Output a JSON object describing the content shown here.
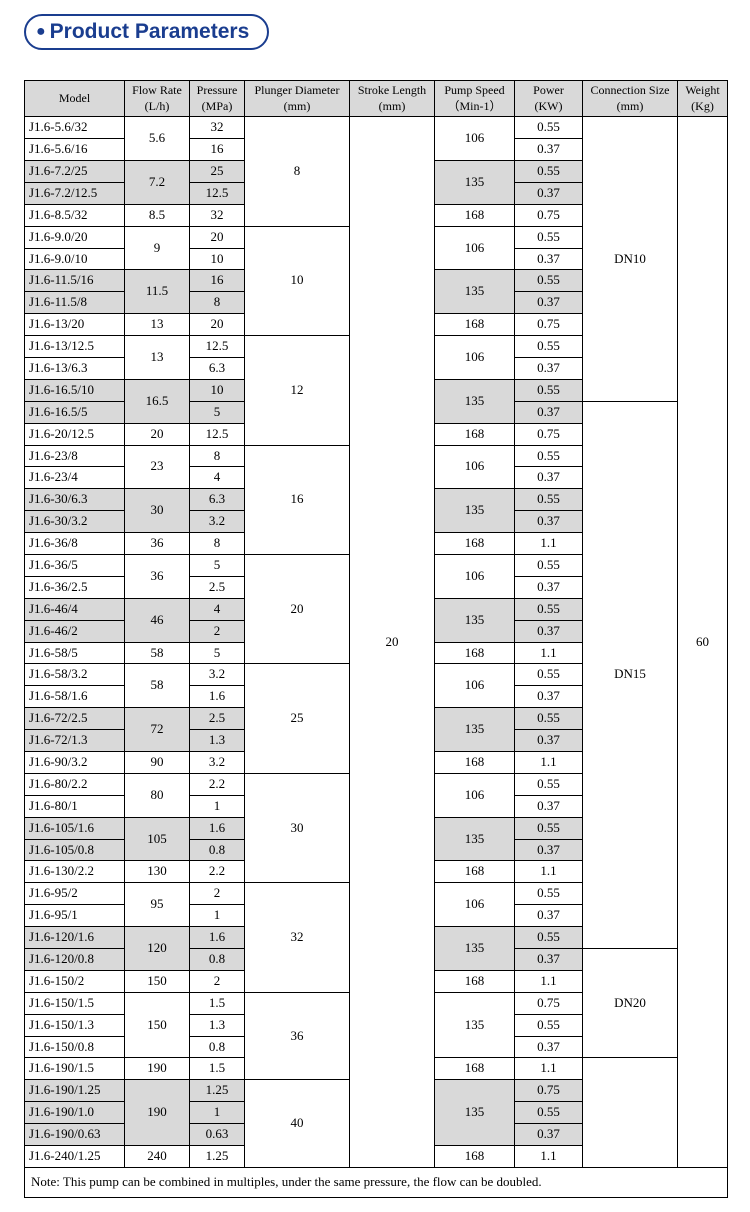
{
  "title": "Product Parameters",
  "headers": [
    {
      "l1": "Model",
      "l2": ""
    },
    {
      "l1": "Flow Rate",
      "l2": "(L/h)"
    },
    {
      "l1": "Pressure",
      "l2": "(MPa)"
    },
    {
      "l1": "Plunger Diameter",
      "l2": "(mm)"
    },
    {
      "l1": "Stroke Length",
      "l2": "(mm)"
    },
    {
      "l1": "Pump Speed",
      "l2": "（Min-1）"
    },
    {
      "l1": "Power",
      "l2": "(KW)"
    },
    {
      "l1": "Connection Size",
      "l2": "(mm)"
    },
    {
      "l1": "Weight",
      "l2": "(Kg)"
    }
  ],
  "stroke_length": "20",
  "weight": "60",
  "connections": [
    {
      "value": "DN10",
      "rows": 13
    },
    {
      "value": "DN15",
      "rows": 25
    },
    {
      "value": "DN20",
      "rows": 5
    }
  ],
  "groups": [
    {
      "plunger": "8",
      "shade": false,
      "rows": [
        {
          "m": "J1.6-5.6/32",
          "f": "5.6",
          "fr": 2,
          "p": "32",
          "s": "106",
          "sr": 2,
          "pw": "0.55"
        },
        {
          "m": "J1.6-5.6/16",
          "p": "16",
          "pw": "0.37"
        },
        {
          "m": "J1.6-7.2/25",
          "f": "7.2",
          "fr": 2,
          "p": "25",
          "s": "135",
          "sr": 2,
          "pw": "0.55",
          "shade": true
        },
        {
          "m": "J1.6-7.2/12.5",
          "p": "12.5",
          "pw": "0.37",
          "shade": true
        },
        {
          "m": "J1.6-8.5/32",
          "f": "8.5",
          "fr": 1,
          "p": "32",
          "s": "168",
          "sr": 1,
          "pw": "0.75"
        }
      ]
    },
    {
      "plunger": "10",
      "shade": false,
      "rows": [
        {
          "m": "J1.6-9.0/20",
          "f": "9",
          "fr": 2,
          "p": "20",
          "s": "106",
          "sr": 2,
          "pw": "0.55"
        },
        {
          "m": "J1.6-9.0/10",
          "p": "10",
          "pw": "0.37"
        },
        {
          "m": "J1.6-11.5/16",
          "f": "11.5",
          "fr": 2,
          "p": "16",
          "s": "135",
          "sr": 2,
          "pw": "0.55",
          "shade": true
        },
        {
          "m": "J1.6-11.5/8",
          "p": "8",
          "pw": "0.37",
          "shade": true
        },
        {
          "m": "J1.6-13/20",
          "f": "13",
          "fr": 1,
          "p": "20",
          "s": "168",
          "sr": 1,
          "pw": "0.75"
        }
      ]
    },
    {
      "plunger": "12",
      "shade": false,
      "rows": [
        {
          "m": "J1.6-13/12.5",
          "f": "13",
          "fr": 2,
          "p": "12.5",
          "s": "106",
          "sr": 2,
          "pw": "0.55"
        },
        {
          "m": "J1.6-13/6.3",
          "p": "6.3",
          "pw": "0.37"
        },
        {
          "m": "J1.6-16.5/10",
          "f": "16.5",
          "fr": 2,
          "p": "10",
          "s": "135",
          "sr": 2,
          "pw": "0.55",
          "shade": true
        },
        {
          "m": "J1.6-16.5/5",
          "p": "5",
          "pw": "0.37",
          "shade": true
        },
        {
          "m": "J1.6-20/12.5",
          "f": "20",
          "fr": 1,
          "p": "12.5",
          "s": "168",
          "sr": 1,
          "pw": "0.75"
        }
      ]
    },
    {
      "plunger": "16",
      "shade": false,
      "rows": [
        {
          "m": "J1.6-23/8",
          "f": "23",
          "fr": 2,
          "p": "8",
          "s": "106",
          "sr": 2,
          "pw": "0.55"
        },
        {
          "m": "J1.6-23/4",
          "p": "4",
          "pw": "0.37"
        },
        {
          "m": "J1.6-30/6.3",
          "f": "30",
          "fr": 2,
          "p": "6.3",
          "s": "135",
          "sr": 2,
          "pw": "0.55",
          "shade": true
        },
        {
          "m": "J1.6-30/3.2",
          "p": "3.2",
          "pw": "0.37",
          "shade": true
        },
        {
          "m": "J1.6-36/8",
          "f": "36",
          "fr": 1,
          "p": "8",
          "s": "168",
          "sr": 1,
          "pw": "1.1"
        }
      ]
    },
    {
      "plunger": "20",
      "shade": false,
      "rows": [
        {
          "m": "J1.6-36/5",
          "f": "36",
          "fr": 2,
          "p": "5",
          "s": "106",
          "sr": 2,
          "pw": "0.55"
        },
        {
          "m": "J1.6-36/2.5",
          "p": "2.5",
          "pw": "0.37"
        },
        {
          "m": "J1.6-46/4",
          "f": "46",
          "fr": 2,
          "p": "4",
          "s": "135",
          "sr": 2,
          "pw": "0.55",
          "shade": true
        },
        {
          "m": "J1.6-46/2",
          "p": "2",
          "pw": "0.37",
          "shade": true
        },
        {
          "m": "J1.6-58/5",
          "f": "58",
          "fr": 1,
          "p": "5",
          "s": "168",
          "sr": 1,
          "pw": "1.1"
        }
      ]
    },
    {
      "plunger": "25",
      "shade": false,
      "rows": [
        {
          "m": "J1.6-58/3.2",
          "f": "58",
          "fr": 2,
          "p": "3.2",
          "s": "106",
          "sr": 2,
          "pw": "0.55"
        },
        {
          "m": "J1.6-58/1.6",
          "p": "1.6",
          "pw": "0.37"
        },
        {
          "m": "J1.6-72/2.5",
          "f": "72",
          "fr": 2,
          "p": "2.5",
          "s": "135",
          "sr": 2,
          "pw": "0.55",
          "shade": true
        },
        {
          "m": "J1.6-72/1.3",
          "p": "1.3",
          "pw": "0.37",
          "shade": true
        },
        {
          "m": "J1.6-90/3.2",
          "f": "90",
          "fr": 1,
          "p": "3.2",
          "s": "168",
          "sr": 1,
          "pw": "1.1"
        }
      ]
    },
    {
      "plunger": "30",
      "shade": false,
      "rows": [
        {
          "m": "J1.6-80/2.2",
          "f": "80",
          "fr": 2,
          "p": "2.2",
          "s": "106",
          "sr": 2,
          "pw": "0.55"
        },
        {
          "m": "J1.6-80/1",
          "p": "1",
          "pw": "0.37"
        },
        {
          "m": "J1.6-105/1.6",
          "f": "105",
          "fr": 2,
          "p": "1.6",
          "s": "135",
          "sr": 2,
          "pw": "0.55",
          "shade": true
        },
        {
          "m": "J1.6-105/0.8",
          "p": "0.8",
          "pw": "0.37",
          "shade": true
        },
        {
          "m": "J1.6-130/2.2",
          "f": "130",
          "fr": 1,
          "p": "2.2",
          "s": "168",
          "sr": 1,
          "pw": "1.1"
        }
      ]
    },
    {
      "plunger": "32",
      "shade": false,
      "rows": [
        {
          "m": "J1.6-95/2",
          "f": "95",
          "fr": 2,
          "p": "2",
          "s": "106",
          "sr": 2,
          "pw": "0.55"
        },
        {
          "m": "J1.6-95/1",
          "p": "1",
          "pw": "0.37"
        },
        {
          "m": "J1.6-120/1.6",
          "f": "120",
          "fr": 2,
          "p": "1.6",
          "s": "135",
          "sr": 2,
          "pw": "0.55",
          "shade": true
        },
        {
          "m": "J1.6-120/0.8",
          "p": "0.8",
          "pw": "0.37",
          "shade": true
        },
        {
          "m": "J1.6-150/2",
          "f": "150",
          "fr": 1,
          "p": "2",
          "s": "168",
          "sr": 1,
          "pw": "1.1"
        }
      ]
    },
    {
      "plunger": "36",
      "shade": false,
      "nrows": 4,
      "rows": [
        {
          "m": "J1.6-150/1.5",
          "f": "150",
          "fr": 3,
          "p": "1.5",
          "s": "135",
          "sr": 3,
          "pw": "0.75"
        },
        {
          "m": "J1.6-150/1.3",
          "p": "1.3",
          "pw": "0.55"
        },
        {
          "m": "J1.6-150/0.8",
          "p": "0.8",
          "pw": "0.37"
        },
        {
          "m": "J1.6-190/1.5",
          "f": "190",
          "fr": 1,
          "p": "1.5",
          "s": "168",
          "sr": 1,
          "pw": "1.1"
        }
      ]
    },
    {
      "plunger": "40",
      "shade": false,
      "nrows": 4,
      "rows": [
        {
          "m": "J1.6-190/1.25",
          "f": "190",
          "fr": 3,
          "p": "1.25",
          "s": "135",
          "sr": 3,
          "pw": "0.75",
          "shade": true
        },
        {
          "m": "J1.6-190/1.0",
          "p": "1",
          "pw": "0.55",
          "shade": true
        },
        {
          "m": "J1.6-190/0.63",
          "p": "0.63",
          "pw": "0.37",
          "shade": true
        },
        {
          "m": "J1.6-240/1.25",
          "f": "240",
          "fr": 1,
          "p": "1.25",
          "s": "168",
          "sr": 1,
          "pw": "1.1"
        }
      ]
    }
  ],
  "note": "Note: This pump can be combined in multiples, under the same pressure, the flow can be doubled."
}
